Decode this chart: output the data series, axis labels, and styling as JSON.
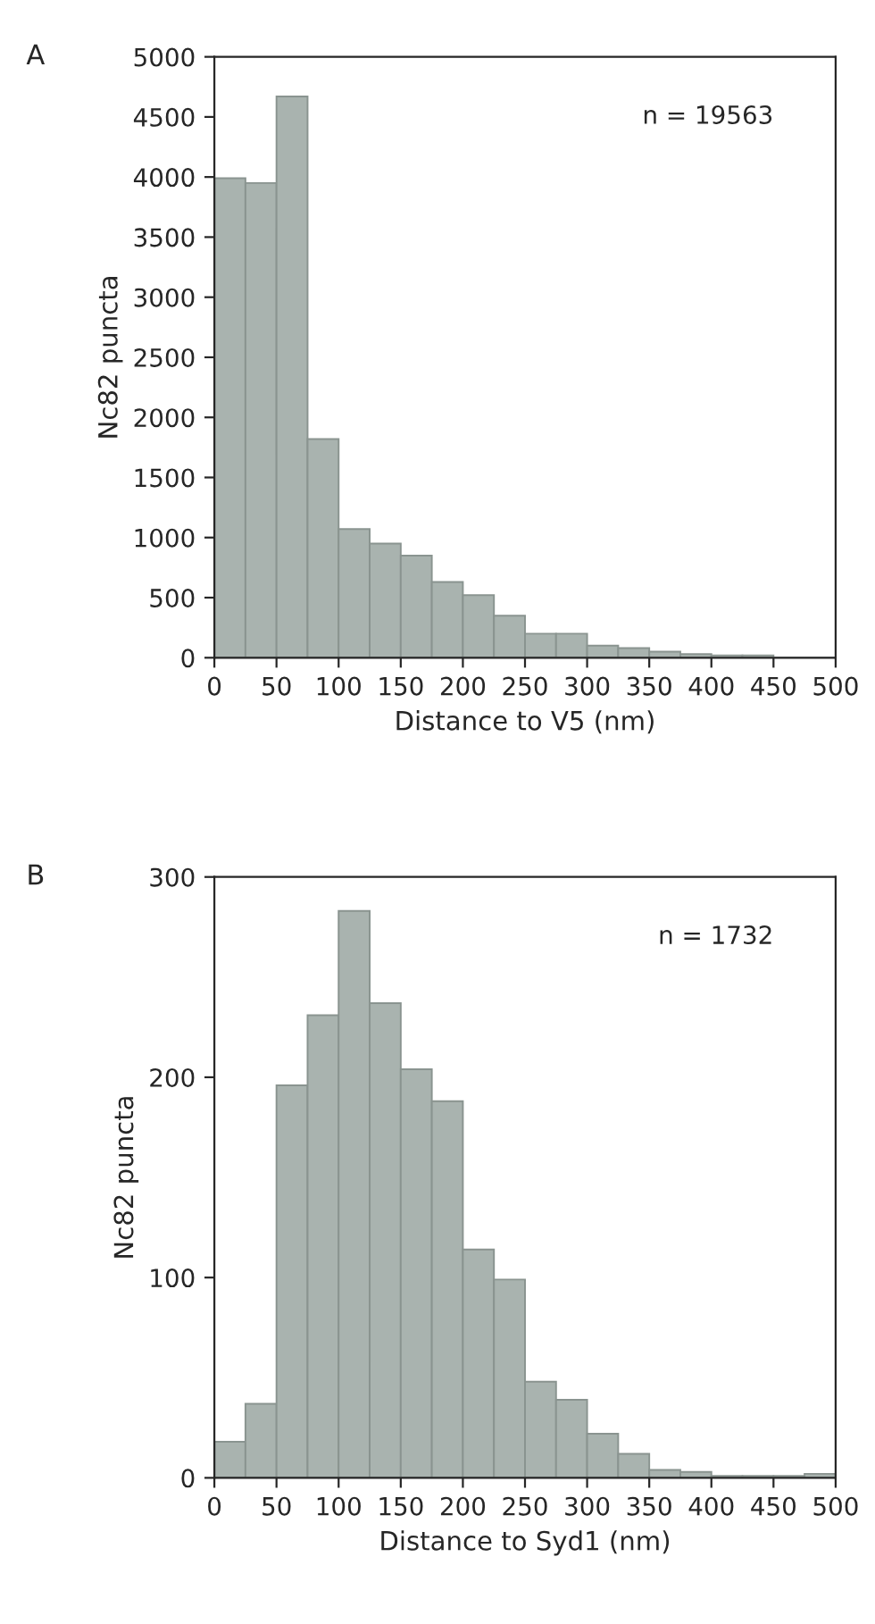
{
  "chart_data": [
    {
      "type": "histogram",
      "title": "A",
      "xlabel": "Distance to V5 (nm)",
      "ylabel": "Nc82 puncta",
      "annotations": [
        "n = 19563"
      ],
      "bins": [
        0,
        25,
        50,
        75,
        100,
        125,
        150,
        175,
        200,
        225,
        250,
        275,
        300,
        325,
        350,
        375,
        400,
        425,
        450,
        475,
        500
      ],
      "values": [
        3990,
        3950,
        4670,
        1820,
        1070,
        950,
        850,
        630,
        520,
        350,
        200,
        200,
        100,
        80,
        50,
        30,
        20,
        20,
        null,
        null
      ],
      "color": "#a9b3af",
      "xlim": [
        0,
        500
      ],
      "xticks": [
        0,
        50,
        100,
        150,
        200,
        250,
        300,
        350,
        400,
        450,
        500
      ],
      "ylim": [
        0,
        5000
      ],
      "yticks": [
        0,
        500,
        1000,
        1500,
        2000,
        2500,
        3000,
        3500,
        4000,
        4500,
        5000
      ],
      "grid": false,
      "legend": false
    },
    {
      "type": "histogram",
      "title": "B",
      "xlabel": "Distance to Syd1 (nm)",
      "ylabel": "Nc82 puncta",
      "annotations": [
        "n = 1732"
      ],
      "bins": [
        0,
        25,
        50,
        75,
        100,
        125,
        150,
        175,
        200,
        225,
        250,
        275,
        300,
        325,
        350,
        375,
        400,
        425,
        450,
        475,
        500
      ],
      "values": [
        18,
        37,
        196,
        231,
        283,
        237,
        204,
        188,
        114,
        99,
        48,
        39,
        22,
        12,
        4,
        3,
        1,
        1,
        1,
        2
      ],
      "color": "#a9b3af",
      "xlim": [
        0,
        500
      ],
      "xticks": [
        0,
        50,
        100,
        150,
        200,
        250,
        300,
        350,
        400,
        450,
        500
      ],
      "ylim": [
        0,
        300
      ],
      "yticks": [
        0,
        100,
        200,
        300
      ],
      "grid": false,
      "legend": false
    }
  ]
}
